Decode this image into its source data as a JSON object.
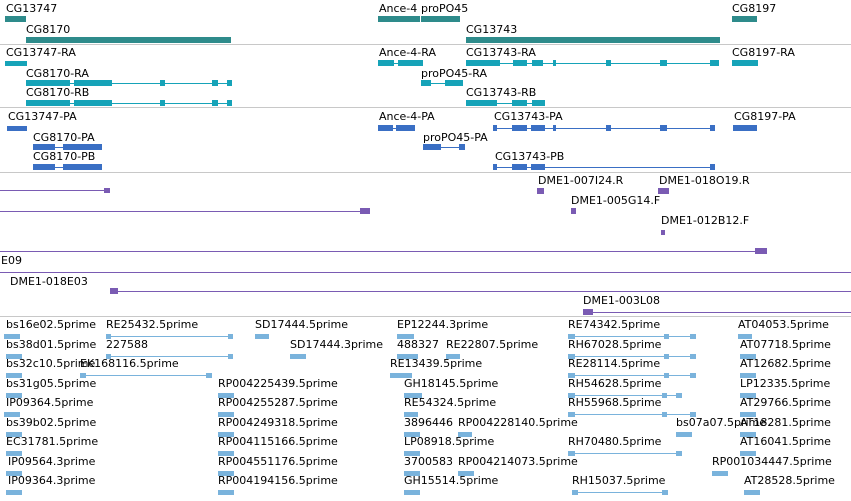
{
  "colors": {
    "gene": "#2e8b8b",
    "rna": "#16a3b8",
    "protein": "#3a6fc4",
    "clone": "#7a5bb3",
    "est": "#7ab3dc",
    "separator": "#c8c8c8"
  },
  "genes": {
    "labels": [
      "CG13747",
      "CG8170",
      "Ance-4",
      "proPO45",
      "CG13743",
      "CG8197"
    ]
  },
  "transcripts": {
    "labels": [
      "CG13747-RA",
      "CG8170-RA",
      "CG8170-RB",
      "Ance-4-RA",
      "proPO45-RA",
      "CG13743-RA",
      "CG13743-RB",
      "CG8197-RA"
    ]
  },
  "proteins": {
    "labels": [
      "CG13747-PA",
      "CG8170-PA",
      "CG8170-PB",
      "Ance-4-PA",
      "proPO45-PA",
      "CG13743-PA",
      "CG13743-PB",
      "CG8197-PA"
    ]
  },
  "clones": {
    "labels": [
      "DME1-007I24.R",
      "DME1-018O19.R",
      "DME1-005G14.F",
      "DME1-012B12.F",
      "E09",
      "DME1-018E03",
      "DME1-003L08"
    ]
  },
  "ests": {
    "labels": [
      "bs16e02.5prime",
      "RE25432.5prime",
      "SD17444.5prime",
      "EP12244.3prime",
      "RE74342.5prime",
      "AT04053.5prime",
      "bs38d01.5prime",
      "227588",
      "SD17444.3prime",
      "488327",
      "RE22807.5prime",
      "RH67028.5prime",
      "AT07718.5prime",
      "bs32c10.5prime",
      "EK168116.5prime",
      "RE13439.5prime",
      "RE28114.5prime",
      "AT12682.5prime",
      "bs31g05.5prime",
      "RP004225439.5prime",
      "GH18145.5prime",
      "RH54628.5prime",
      "LP12335.5prime",
      "IP09364.5prime",
      "RP004255287.5prime",
      "RE54324.5prime",
      "RH55968.5prime",
      "AT29766.5prime",
      "bs39b02.5prime",
      "RP004249318.5prime",
      "3896446",
      "RP004228140.5prime",
      "bs07a07.5prime",
      "AT18281.5prime",
      "EC31781.5prime",
      "RP004115166.5prime",
      "LP08918.5prime",
      "RH70480.5prime",
      "AT16041.5prime",
      "IP09564.3prime",
      "RP004551176.5prime",
      "3700583",
      "RP004214073.5prime",
      "RP001034447.5prime",
      "IP09364.3prime",
      "RP004194156.5prime",
      "GH15514.5prime",
      "RH15037.5prime",
      "AT28528.5prime"
    ]
  }
}
